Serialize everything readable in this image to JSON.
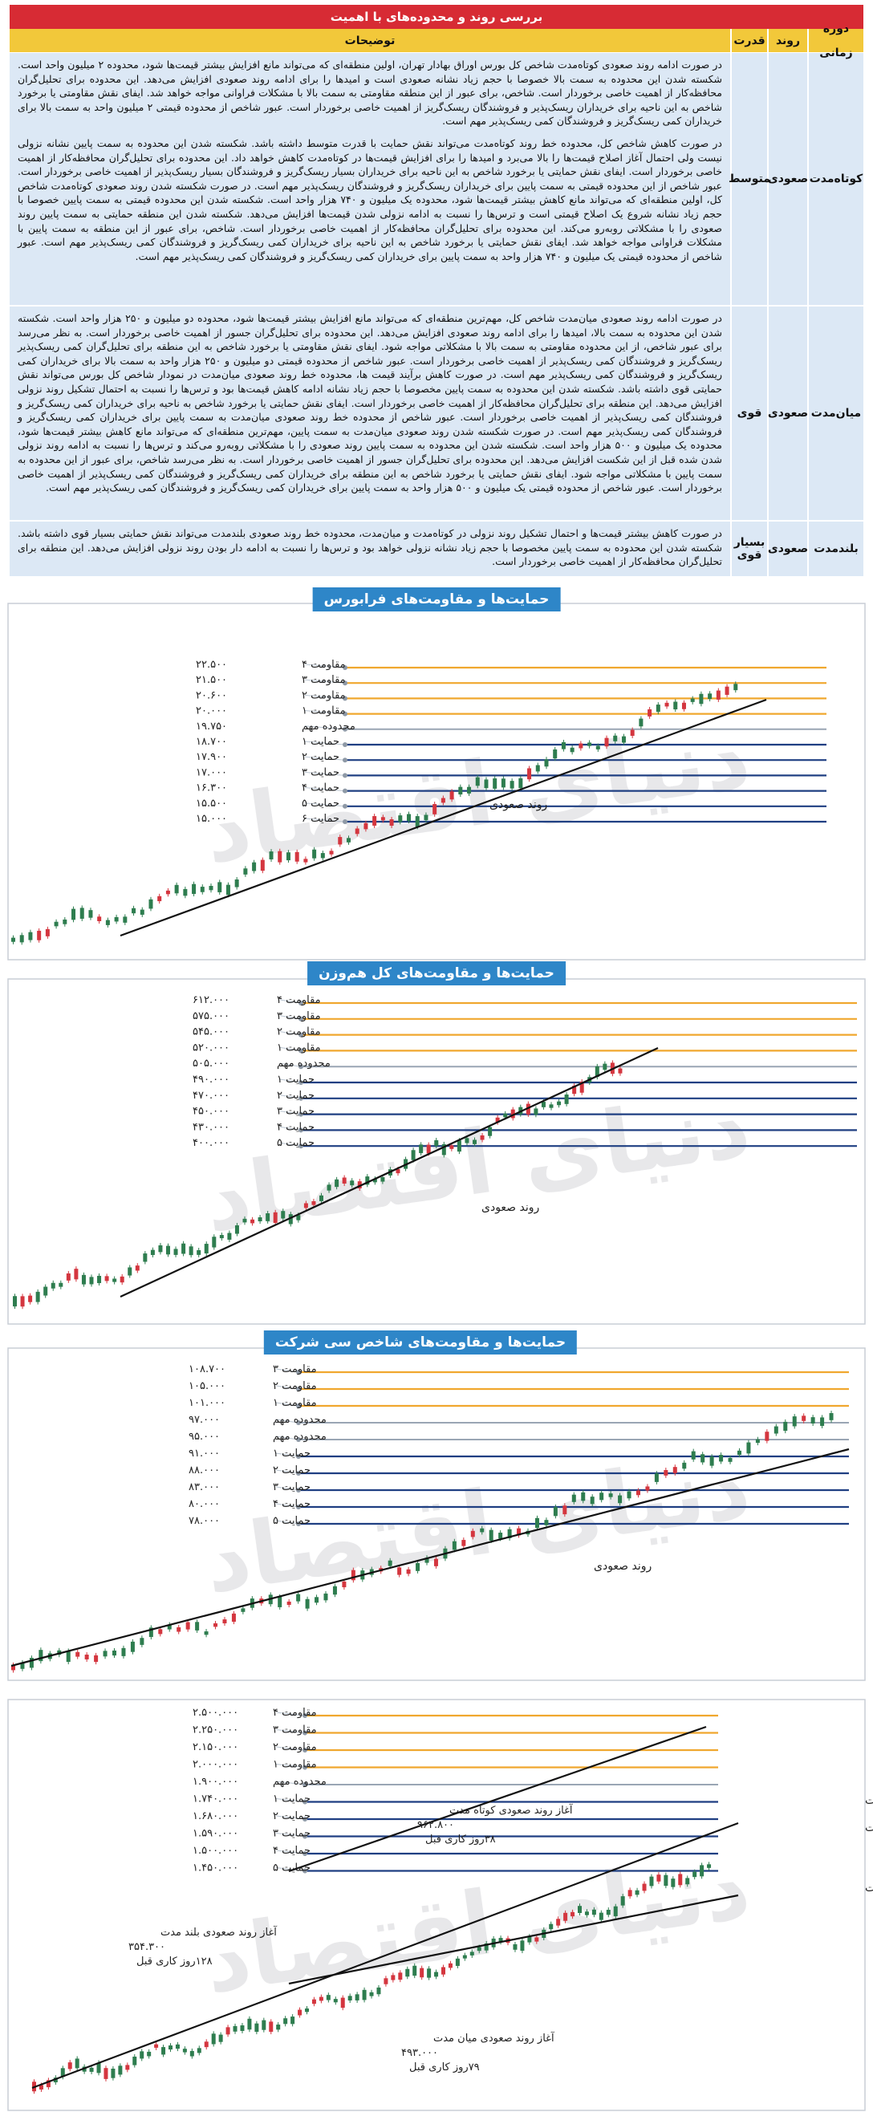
{
  "table": {
    "title": "بررسی روند و محدوده‌های با اهمیت",
    "headers": {
      "period": "دوره زمانی",
      "trend": "روند",
      "power": "قدرت",
      "desc": "توضیحات"
    },
    "rows": [
      {
        "period": "کوتاه‌مدت",
        "trend": "صعودی",
        "power": "متوسط",
        "desc": [
          "در صورت ادامه روند صعودی کوتاه‌مدت شاخص کل بورس اوراق بهادار تهران، اولین منطقه‌ای که می‌تواند مانع افزایش بیشتر قیمت‌ها شود، محدوده ۲ میلیون واحد است. شکسته شدن این محدوده به سمت بالا خصوصا با حجم زیاد نشانه صعودی است و امیدها را برای ادامه روند صعودی افزایش می‌دهد. این محدوده برای تحلیل‌گران محافظه‌کار از اهمیت خاصی برخوردار است. شاخص، برای عبور از این منطقه مقاومتی به سمت بالا با مشکلات فراوانی مواجه خواهد شد. ایفای نقش مقاومتی یا برخورد شاخص به این ناحیه برای خریداران ریسک‌پذیر و فروشندگان ریسک‌گریز از اهمیت خاصی برخوردار است. عبور شاخص از محدوده قیمتی ۲ میلیون واحد به سمت بالا برای خریداران کمی ریسک‌گریز و فروشندگان کمی ریسک‌پذیر مهم است.",
          "در صورت کاهش شاخص کل، محدوده خط روند کوتاه‌مدت می‌تواند نقش حمایت با قدرت متوسط داشته باشد. شکسته شدن این محدوده به سمت پایین نشانه نزولی نیست ولی احتمال آغاز اصلاح قیمت‌ها را بالا می‌برد و امیدها را برای افزایش قیمت‌ها در کوتاه‌مدت کاهش خواهد داد. این محدوده برای تحلیل‌گران محافظه‌کار از اهمیت خاصی برخوردار است. ایفای نقش حمایتی یا برخورد شاخص به این ناحیه برای خریداران بسیار ریسک‌گریز و فروشندگان بسیار ریسک‌پذیر از اهمیت خاصی برخوردار است. عبور شاخص از این محدوده قیمتی به سمت پایین برای خریداران ریسک‌گریز و فروشندگان ریسک‌پذیر مهم است. در صورت شکسته شدن روند صعودی کوتاه‌مدت شاخص کل، اولین منطقه‌ای که می‌تواند مانع کاهش بیشتر قیمت‌ها شود، محدوده یک میلیون و ۷۴۰ هزار واحد است. شکسته شدن این محدوده قیمتی به سمت پایین خصوصا با حجم زیاد نشانه شروع یک اصلاح قیمتی است و ترس‌ها را نسبت به ادامه نزولی شدن قیمت‌ها افزایش می‌دهد. شکسته شدن این منطقه حمایتی به سمت پایین روند صعودی را با مشکلاتی روبه‌رو می‌کند. این محدوده برای تحلیل‌گران محافظه‌کار از اهمیت خاصی برخوردار است. شاخص، برای عبور از این منطقه به سمت پایین با مشکلات فراوانی مواجه خواهد شد. ایفای نقش حمایتی یا برخورد شاخص به این ناحیه برای خریداران کمی ریسک‌گریز و فروشندگان کمی ریسک‌پذیر مهم است. عبور شاخص از محدوده قیمتی یک میلیون و ۷۴۰ هزار واحد به سمت پایین برای خریداران کمی ریسک‌گریز و فروشندگان کمی ریسک‌پذیر مهم است."
        ]
      },
      {
        "period": "میان‌مدت",
        "trend": "صعودی",
        "power": "قوی",
        "desc": [
          "در صورت ادامه روند صعودی میان‌مدت شاخص کل، مهم‌ترین منطقه‌ای که می‌تواند مانع افزایش بیشتر قیمت‌ها شود، محدوده دو میلیون و ۲۵۰ هزار واحد است. شکسته شدن این محدوده به سمت بالا، امیدها را برای ادامه روند صعودی افزایش می‌دهد. این محدوده برای تحلیل‌گران جسور از اهمیت خاصی برخوردار است. به نظر می‌رسد برای عبور شاخص، از این محدوده مقاومتی به سمت بالا با مشکلاتی مواجه شود. ایفای نقش مقاومتی یا برخورد شاخص به این منطقه برای تحلیل‌گران کمی ریسک‌پذیر ریسک‌گریز و فروشندگان کمی ریسک‌پذیر از اهمیت خاصی برخوردار است. عبور شاخص از محدوده قیمتی دو میلیون و ۲۵۰ هزار واحد به سمت بالا برای خریداران کمی ریسک‌گریز و فروشندگان کمی ریسک‌پذیر مهم است. در صورت کاهش برآیند قیمت ها، محدوده خط روند صعودی میان‌مدت در نمودار شاخص کل بورس می‌تواند نقش حمایتی قوی داشته باشد. شکسته شدن این محدوده به سمت پایین مخصوصا با حجم زیاد نشانه ادامه کاهش قیمت‌ها بود و ترس‌ها را نسبت به احتمال تشکیل روند نزولی افزایش می‌دهد. این منطقه برای تحلیل‌گران محافظه‌کار از اهمیت خاصی برخوردار است. ایفای نقش حمایتی یا برخورد شاخص به ناحیه برای خریداران کمی ریسک‌گریز و فروشندگان کمی ریسک‌پذیر از اهمیت خاصی برخوردار است. عبور شاخص از محدوده خط روند صعودی میان‌مدت به سمت پایین برای خریداران کمی ریسک‌گریز و فروشندگان کمی ریسک‌پذیر مهم است. در صورت شکسته شدن روند صعودی میان‌مدت به سمت پایین، مهم‌ترین منطقه‌ای که می‌تواند مانع کاهش بیشتر قیمت‌ها شود، محدوده یک میلیون و ۵۰۰ هزار واحد است. شکسته شدن این محدوده به سمت پایین روند صعودی را با مشکلاتی روبه‌رو می‌کند و ترس‌ها را نسبت به ادامه روند نزولی شدن شده قبل از این شکست افزایش می‌دهد. این محدوده برای تحلیل‌گران جسور از اهمیت خاصی برخوردار است. به نظر می‌رسد شاخص، برای عبور از این محدوده به سمت پایین با مشکلاتی مواجه شود. ایفای نقش حمایتی یا برخورد شاخص به این منطقه برای خریداران کمی ریسک‌گریز و فروشندگان کمی ریسک‌پذیر از اهمیت خاصی برخوردار است. عبور شاخص از محدوده قیمتی یک میلیون و ۵۰۰ هزار واحد به سمت پایین برای خریداران کمی ریسک‌گریز و فروشندگان کمی ریسک‌پذیر مهم است."
        ]
      },
      {
        "period": "بلندمدت",
        "trend": "صعودی",
        "power": "بسیار قوی",
        "desc": [
          "در صورت کاهش بیشتر قیمت‌ها و احتمال تشکیل روند نزولی در کوتاه‌مدت و میان‌مدت، محدوده خط روند صعودی بلندمدت می‌تواند نقش حمایتی بسیار قوی داشته باشد. شکسته شدن این محدوده به سمت پایین مخصوصا با حجم زیاد نشانه نزولی خواهد بود و ترس‌ها را نسبت به ادامه دار بودن روند نزولی افزایش می‌دهد. این منطقه برای تحلیل‌گران محافظه‌کار از اهمیت خاصی برخوردار است."
        ]
      }
    ]
  },
  "chart_data": [
    {
      "type": "candlestick",
      "title": "حمایت‌ها و مقاومت‌های فرابورس",
      "levels": [
        {
          "label": "مقاومت ۴",
          "value": 22500,
          "value_text": "۲۲.۵۰۰",
          "kind": "resistance"
        },
        {
          "label": "مقاومت ۳",
          "value": 21500,
          "value_text": "۲۱.۵۰۰",
          "kind": "resistance"
        },
        {
          "label": "مقاومت ۲",
          "value": 20600,
          "value_text": "۲۰.۶۰۰",
          "kind": "resistance"
        },
        {
          "label": "مقاومت ۱",
          "value": 20000,
          "value_text": "۲۰.۰۰۰",
          "kind": "resistance"
        },
        {
          "label": "محدوده مهم",
          "value": 19750,
          "value_text": "۱۹.۷۵۰",
          "kind": "important"
        },
        {
          "label": "حمایت ۱",
          "value": 18700,
          "value_text": "۱۸.۷۰۰",
          "kind": "support"
        },
        {
          "label": "حمایت ۲",
          "value": 17900,
          "value_text": "۱۷.۹۰۰",
          "kind": "support"
        },
        {
          "label": "حمایت ۳",
          "value": 17000,
          "value_text": "۱۷.۰۰۰",
          "kind": "support"
        },
        {
          "label": "حمایت ۴",
          "value": 16300,
          "value_text": "۱۶.۳۰۰",
          "kind": "support"
        },
        {
          "label": "حمایت ۵",
          "value": 15500,
          "value_text": "۱۵.۵۰۰",
          "kind": "support"
        },
        {
          "label": "حمایت ۶",
          "value": 15000,
          "value_text": "۱۵.۰۰۰",
          "kind": "support"
        }
      ],
      "trendlines": [
        {
          "label": "روند صعودی"
        }
      ],
      "watermark": "دنیای اقتصاد"
    },
    {
      "type": "candlestick",
      "title": "حمایت‌ها و مقاومت‌های کل هم‌وزن",
      "levels": [
        {
          "label": "مقاومت ۴",
          "value": 612000,
          "value_text": "۶۱۲.۰۰۰",
          "kind": "resistance"
        },
        {
          "label": "مقاومت ۳",
          "value": 575000,
          "value_text": "۵۷۵.۰۰۰",
          "kind": "resistance"
        },
        {
          "label": "مقاومت ۲",
          "value": 545000,
          "value_text": "۵۴۵.۰۰۰",
          "kind": "resistance"
        },
        {
          "label": "مقاومت ۱",
          "value": 520000,
          "value_text": "۵۲۰.۰۰۰",
          "kind": "resistance"
        },
        {
          "label": "محدوده مهم",
          "value": 505000,
          "value_text": "۵۰۵.۰۰۰",
          "kind": "important"
        },
        {
          "label": "حمایت ۱",
          "value": 490000,
          "value_text": "۴۹۰.۰۰۰",
          "kind": "support"
        },
        {
          "label": "حمایت ۲",
          "value": 470000,
          "value_text": "۴۷۰.۰۰۰",
          "kind": "support"
        },
        {
          "label": "حمایت ۳",
          "value": 450000,
          "value_text": "۴۵۰.۰۰۰",
          "kind": "support"
        },
        {
          "label": "حمایت ۴",
          "value": 430000,
          "value_text": "۴۳۰.۰۰۰",
          "kind": "support"
        },
        {
          "label": "حمایت ۵",
          "value": 400000,
          "value_text": "۴۰۰.۰۰۰",
          "kind": "support"
        }
      ],
      "trendlines": [
        {
          "label": "روند صعودی"
        }
      ],
      "watermark": "دنیای اقتصاد"
    },
    {
      "type": "candlestick",
      "title": "حمایت‌ها و مقاومت‌های شاخص سی شرکت",
      "levels": [
        {
          "label": "مقاومت ۳",
          "value": 108700,
          "value_text": "۱۰۸.۷۰۰",
          "kind": "resistance"
        },
        {
          "label": "مقاومت ۲",
          "value": 105000,
          "value_text": "۱۰۵.۰۰۰",
          "kind": "resistance"
        },
        {
          "label": "مقاومت ۱",
          "value": 101000,
          "value_text": "۱۰۱.۰۰۰",
          "kind": "resistance"
        },
        {
          "label": "محدوده مهم",
          "value": 97000,
          "value_text": "۹۷.۰۰۰",
          "kind": "important"
        },
        {
          "label": "محدوده مهم",
          "value": 95000,
          "value_text": "۹۵.۰۰۰",
          "kind": "important"
        },
        {
          "label": "حمایت ۱",
          "value": 91000,
          "value_text": "۹۱.۰۰۰",
          "kind": "support"
        },
        {
          "label": "حمایت ۲",
          "value": 88000,
          "value_text": "۸۸.۰۰۰",
          "kind": "support"
        },
        {
          "label": "حمایت ۳",
          "value": 83000,
          "value_text": "۸۳.۰۰۰",
          "kind": "support"
        },
        {
          "label": "حمایت ۴",
          "value": 80000,
          "value_text": "۸۰.۰۰۰",
          "kind": "support"
        },
        {
          "label": "حمایت ۵",
          "value": 78000,
          "value_text": "۷۸.۰۰۰",
          "kind": "support"
        }
      ],
      "trendlines": [
        {
          "label": "روند صعودی"
        }
      ],
      "watermark": "دنیای اقتصاد"
    },
    {
      "type": "candlestick",
      "title": "",
      "levels": [
        {
          "label": "مقاومت ۴",
          "value": 2500000,
          "value_text": "۲.۵۰۰.۰۰۰",
          "kind": "resistance"
        },
        {
          "label": "مقاومت ۳",
          "value": 2250000,
          "value_text": "۲.۲۵۰.۰۰۰",
          "kind": "resistance"
        },
        {
          "label": "مقاومت ۲",
          "value": 2150000,
          "value_text": "۲.۱۵۰.۰۰۰",
          "kind": "resistance"
        },
        {
          "label": "مقاومت ۱",
          "value": 2000000,
          "value_text": "۲.۰۰۰.۰۰۰",
          "kind": "resistance"
        },
        {
          "label": "محدوده مهم",
          "value": 1900000,
          "value_text": "۱.۹۰۰.۰۰۰",
          "kind": "important"
        },
        {
          "label": "حمایت ۱",
          "value": 1740000,
          "value_text": "۱.۷۴۰.۰۰۰",
          "kind": "support"
        },
        {
          "label": "حمایت ۲",
          "value": 1680000,
          "value_text": "۱.۶۸۰.۰۰۰",
          "kind": "support"
        },
        {
          "label": "حمایت ۳",
          "value": 1590000,
          "value_text": "۱.۵۹۰.۰۰۰",
          "kind": "support"
        },
        {
          "label": "حمایت ۴",
          "value": 1500000,
          "value_text": "۱.۵۰۰.۰۰۰",
          "kind": "support"
        },
        {
          "label": "حمایت ۵",
          "value": 1450000,
          "value_text": "۱.۴۵۰.۰۰۰",
          "kind": "support"
        }
      ],
      "trendlines": [
        {
          "label": "روند صعودی کوتاه مدت"
        },
        {
          "label": "روند صعودی میان مدت"
        },
        {
          "label": "روند صعودی بلند مدت"
        }
      ],
      "annotations": [
        {
          "title": "آغاز روند صعودی کوتاه مدت",
          "value": "۹۶۲.۸۰۰",
          "note": "۳۸روز کاری قبل"
        },
        {
          "title": "آغاز روند صعودی بلند مدت",
          "value": "۳۵۴.۳۰۰",
          "note": "۱۲۸روز کاری قبل"
        },
        {
          "title": "آغاز روند صعودی میان مدت",
          "value": "۴۹۳.۰۰۰",
          "note": "۷۹روز کاری قبل"
        }
      ],
      "watermark": "دنیای اقتصاد"
    }
  ],
  "colors": {
    "resistance": "#f0a72e",
    "support": "#1f3f82",
    "important": "#9aa6b4",
    "candle_up": "#2e7d4f",
    "candle_down": "#d4363f",
    "title_bg": "#2e86c8",
    "table_title": "#d72b34",
    "table_head": "#f2c83a",
    "table_row": "#dce8f5"
  }
}
